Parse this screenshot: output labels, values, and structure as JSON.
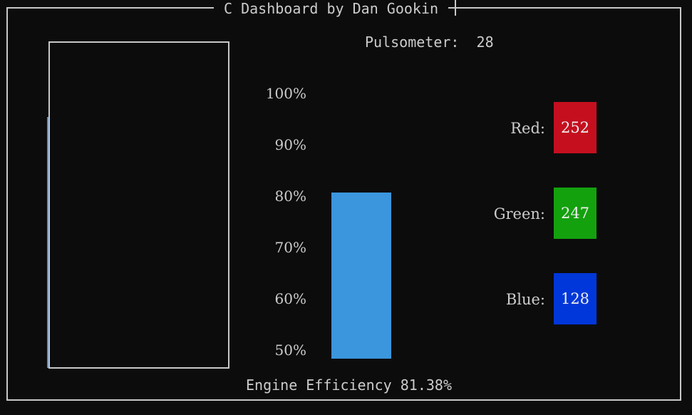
{
  "dashboard": {
    "title": "C Dashboard by Dan Gookin"
  },
  "pulsometer": {
    "label": "Pulsometer:",
    "value": "28",
    "readout": "Pulsometer:  28"
  },
  "efficiency": {
    "ticks": [
      "100%",
      "90%",
      "80%",
      "70%",
      "60%",
      "50%"
    ],
    "range": [
      50,
      100
    ],
    "value_percent": 81.38,
    "caption": "Engine Efficiency 81.38%",
    "bar_color": "#3b96dd"
  },
  "colors": {
    "red": {
      "label": "Red:",
      "value": "252",
      "swatch": "#c50f1f"
    },
    "green": {
      "label": "Green:",
      "value": "247",
      "swatch": "#13a10e"
    },
    "blue": {
      "label": "Blue:",
      "value": "128",
      "swatch": "#0037da"
    }
  }
}
